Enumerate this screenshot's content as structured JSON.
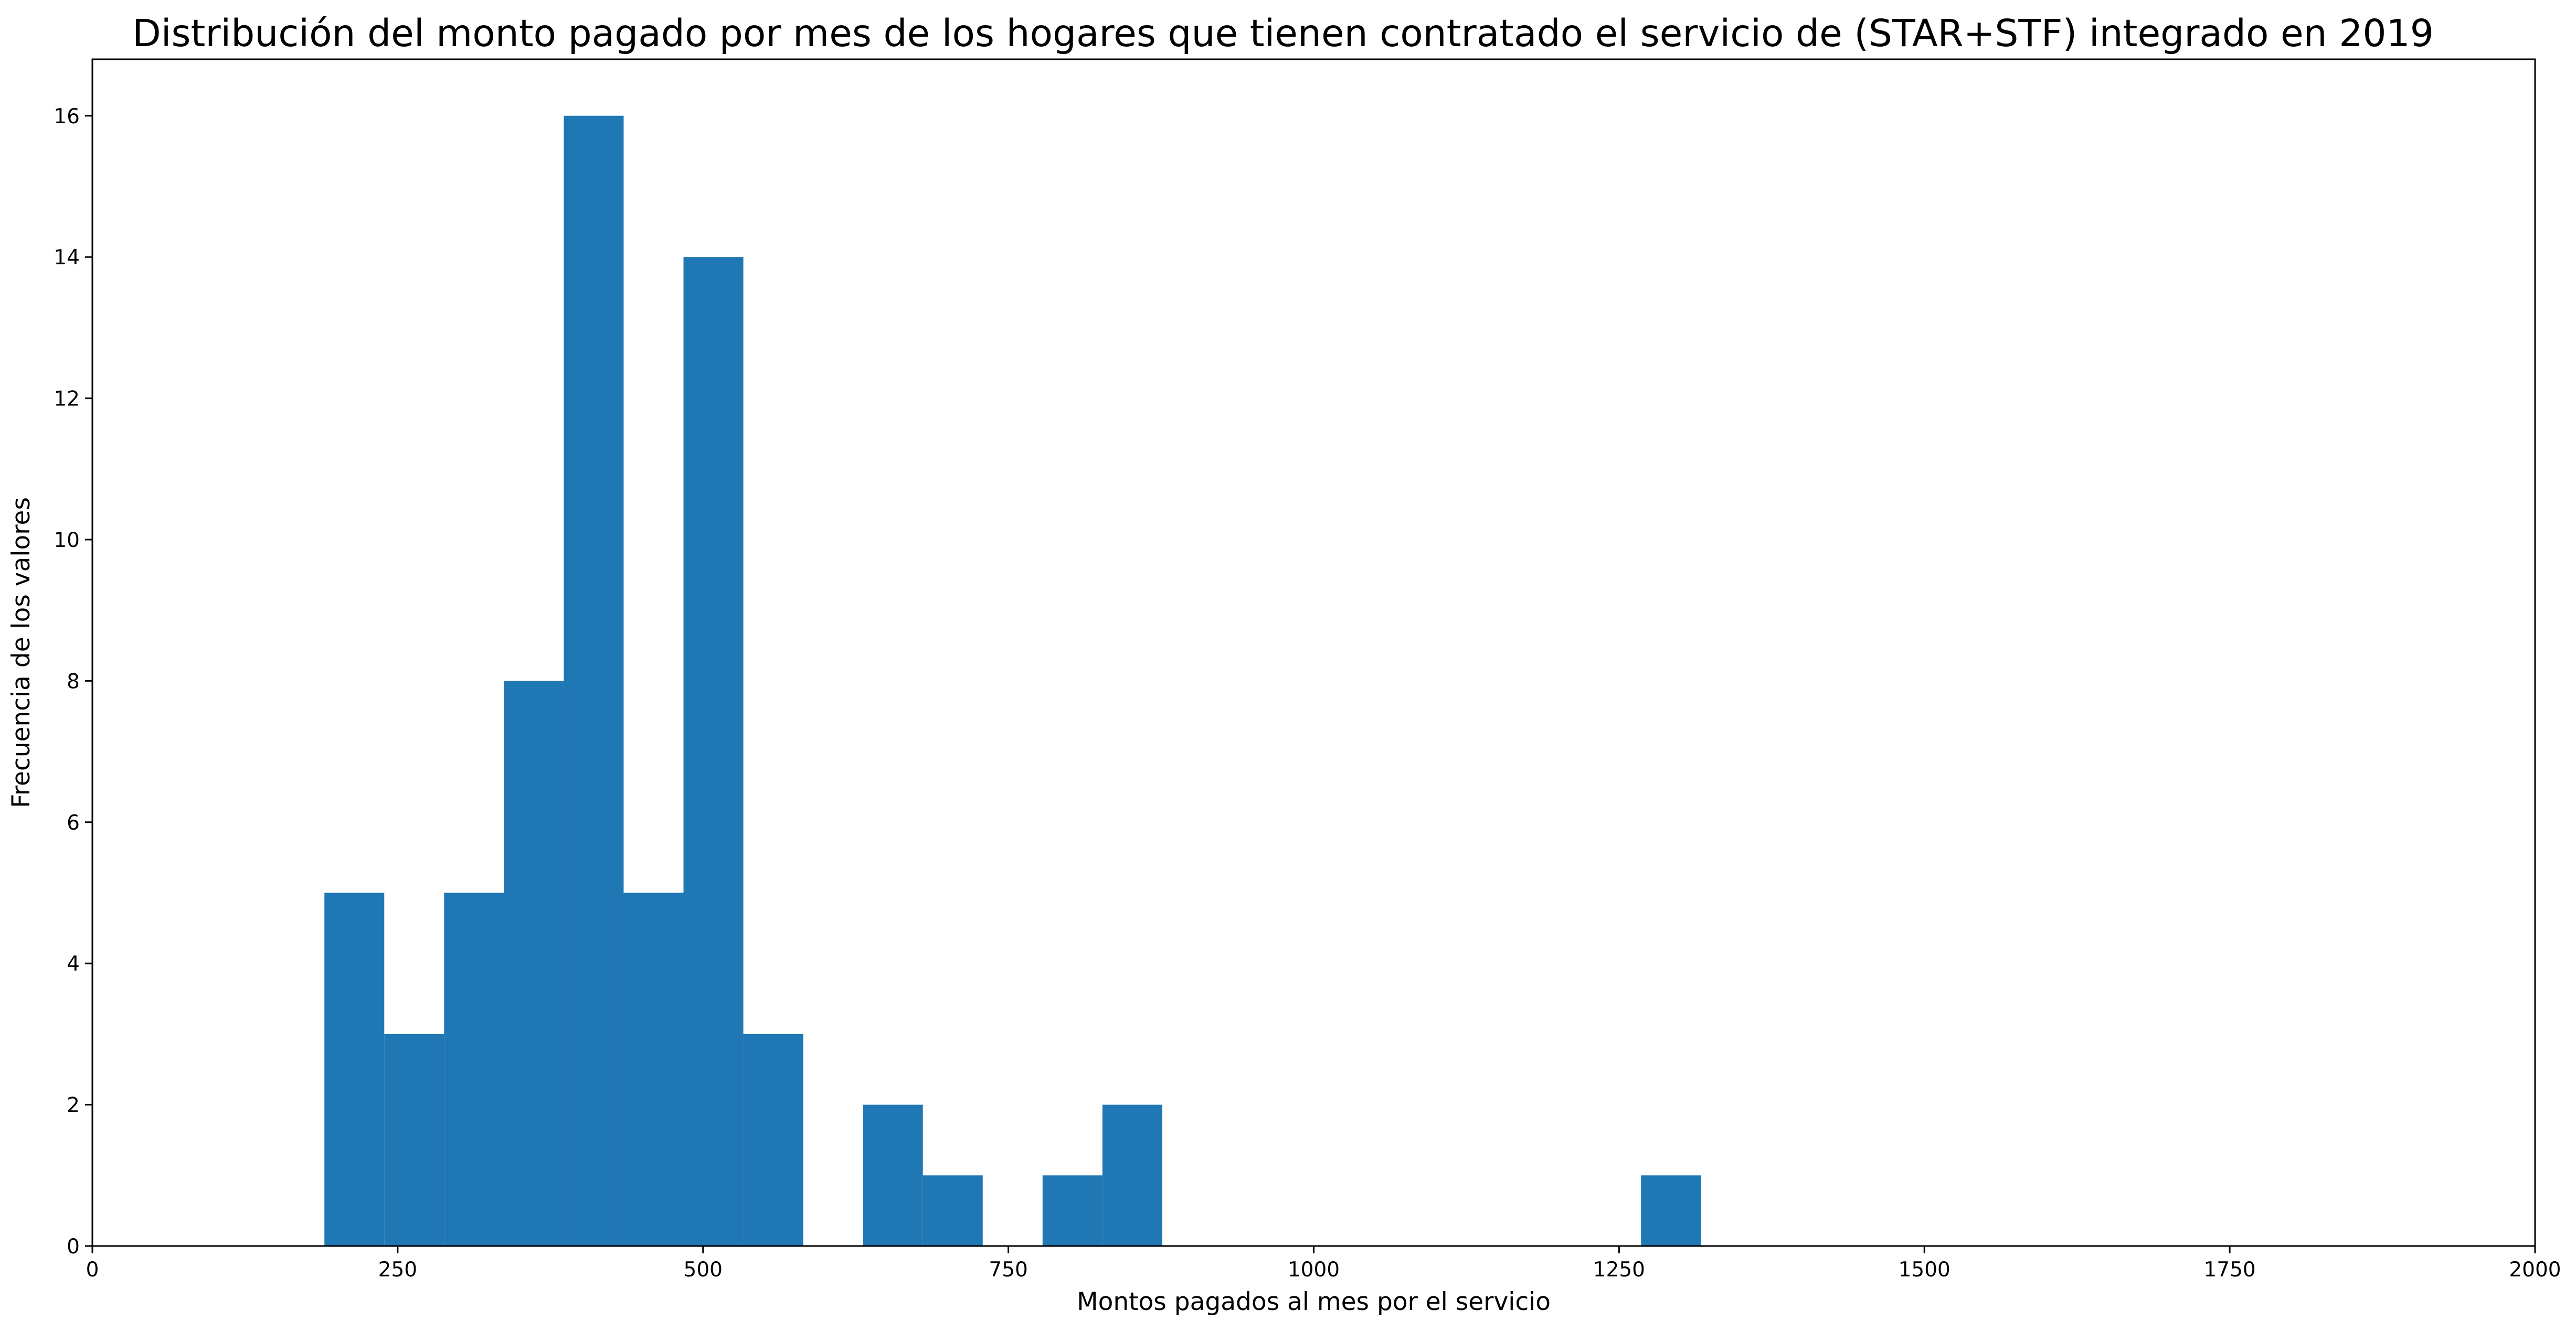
{
  "chart_data": {
    "type": "bar",
    "title": "Distribución del monto pagado por mes de los hogares que tienen contratado el servicio de (STAR+STF) integrado en 2019",
    "xlabel": "Montos pagados al mes por el servicio",
    "ylabel": "Frecuencia de los valores",
    "xlim": [
      0,
      2000
    ],
    "ylim": [
      0,
      16.8
    ],
    "xticks": [
      0,
      250,
      500,
      750,
      1000,
      1250,
      1500,
      1750,
      2000
    ],
    "yticks": [
      0,
      2,
      4,
      6,
      8,
      10,
      12,
      14,
      16
    ],
    "grid": false,
    "bar_color": "#1f77b4",
    "bins": [
      {
        "x0": 190,
        "x1": 239,
        "count": 5
      },
      {
        "x0": 239,
        "x1": 288,
        "count": 3
      },
      {
        "x0": 288,
        "x1": 337,
        "count": 5
      },
      {
        "x0": 337,
        "x1": 386,
        "count": 8
      },
      {
        "x0": 386,
        "x1": 435,
        "count": 16
      },
      {
        "x0": 435,
        "x1": 484,
        "count": 5
      },
      {
        "x0": 484,
        "x1": 533,
        "count": 14
      },
      {
        "x0": 533,
        "x1": 582,
        "count": 3
      },
      {
        "x0": 582,
        "x1": 631,
        "count": 0
      },
      {
        "x0": 631,
        "x1": 680,
        "count": 2
      },
      {
        "x0": 680,
        "x1": 729,
        "count": 1
      },
      {
        "x0": 729,
        "x1": 778,
        "count": 0
      },
      {
        "x0": 778,
        "x1": 827,
        "count": 1
      },
      {
        "x0": 827,
        "x1": 876,
        "count": 2
      },
      {
        "x0": 876,
        "x1": 925,
        "count": 0
      },
      {
        "x0": 925,
        "x1": 974,
        "count": 0
      },
      {
        "x0": 974,
        "x1": 1023,
        "count": 0
      },
      {
        "x0": 1023,
        "x1": 1072,
        "count": 0
      },
      {
        "x0": 1072,
        "x1": 1121,
        "count": 0
      },
      {
        "x0": 1121,
        "x1": 1170,
        "count": 0
      },
      {
        "x0": 1170,
        "x1": 1219,
        "count": 0
      },
      {
        "x0": 1219,
        "x1": 1268,
        "count": 0
      },
      {
        "x0": 1268,
        "x1": 1317,
        "count": 1
      }
    ]
  }
}
